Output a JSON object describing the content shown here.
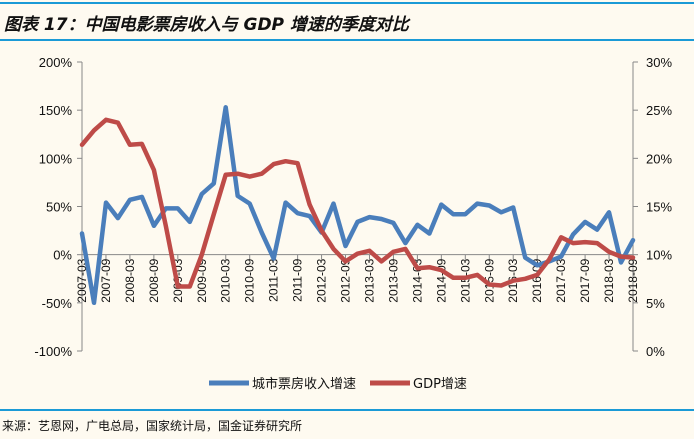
{
  "header": {
    "title": "图表 17：中国电影票房收入与 GDP 增速的季度对比"
  },
  "footer": {
    "source": "来源：艺恩网，广电总局，国家统计局，国金证券研究所"
  },
  "colors": {
    "accent_line": "#1b9ad6",
    "series_box_office": "#4a7ebb",
    "series_gdp": "#be4b48"
  },
  "chart_data": {
    "type": "line",
    "title": "图表 17：中国电影票房收入与 GDP 增速的季度对比",
    "x": [
      "2007-03",
      "2007-06",
      "2007-09",
      "2007-12",
      "2008-03",
      "2008-06",
      "2008-09",
      "2008-12",
      "2009-03",
      "2009-06",
      "2009-09",
      "2009-12",
      "2010-03",
      "2010-06",
      "2010-09",
      "2010-12",
      "2011-03",
      "2011-06",
      "2011-09",
      "2011-12",
      "2012-03",
      "2012-06",
      "2012-09",
      "2012-12",
      "2013-03",
      "2013-06",
      "2013-09",
      "2013-12",
      "2014-03",
      "2014-06",
      "2014-09",
      "2014-12",
      "2015-03",
      "2015-06",
      "2015-09",
      "2015-12",
      "2016-03",
      "2016-06",
      "2016-09",
      "2016-12",
      "2017-03",
      "2017-06",
      "2017-09",
      "2017-12",
      "2018-03",
      "2018-06",
      "2018-09"
    ],
    "x_tick_labels": [
      "2007-03",
      "2007-09",
      "2008-03",
      "2008-09",
      "2009-03",
      "2009-09",
      "2010-03",
      "2010-09",
      "2011-03",
      "2011-09",
      "2012-03",
      "2012-09",
      "2013-03",
      "2013-09",
      "2014-03",
      "2014-09",
      "2015-03",
      "2015-09",
      "2016-03",
      "2016-09",
      "2017-03",
      "2017-09",
      "2018-03",
      "2018-09"
    ],
    "left_axis": {
      "ylim": [
        -100,
        200
      ],
      "ticks": [
        "-100%",
        "-50%",
        "0%",
        "50%",
        "100%",
        "150%",
        "200%"
      ]
    },
    "right_axis": {
      "ylim": [
        0,
        30
      ],
      "ticks": [
        "0%",
        "5%",
        "10%",
        "15%",
        "20%",
        "25%",
        "30%"
      ]
    },
    "grid": false,
    "legend_position": "bottom",
    "series": [
      {
        "name": "城市票房收入增速",
        "axis": "left",
        "unit": "%",
        "values": [
          22,
          -50,
          54,
          38,
          57,
          60,
          30,
          48,
          48,
          34,
          63,
          74,
          153,
          61,
          53,
          23,
          -4,
          54,
          43,
          40,
          23,
          53,
          9,
          34,
          39,
          37,
          33,
          12,
          31,
          22,
          52,
          42,
          42,
          53,
          51,
          44,
          49,
          -3,
          -11,
          -7,
          -2,
          21,
          34,
          26,
          44,
          -8,
          15
        ]
      },
      {
        "name": "GDP增速",
        "axis": "right",
        "unit": "%",
        "values": [
          21.4,
          22.9,
          24.0,
          23.7,
          21.4,
          21.5,
          18.8,
          13.0,
          6.7,
          6.7,
          10.0,
          14.2,
          18.3,
          18.4,
          18.1,
          18.4,
          19.4,
          19.7,
          19.5,
          15.2,
          12.5,
          10.6,
          9.3,
          10.1,
          10.4,
          9.3,
          10.3,
          10.6,
          8.6,
          8.7,
          8.4,
          7.6,
          7.6,
          7.9,
          6.9,
          6.8,
          7.3,
          7.5,
          7.9,
          9.5,
          11.8,
          11.2,
          11.3,
          11.2,
          10.3,
          9.8,
          9.7
        ]
      }
    ]
  }
}
